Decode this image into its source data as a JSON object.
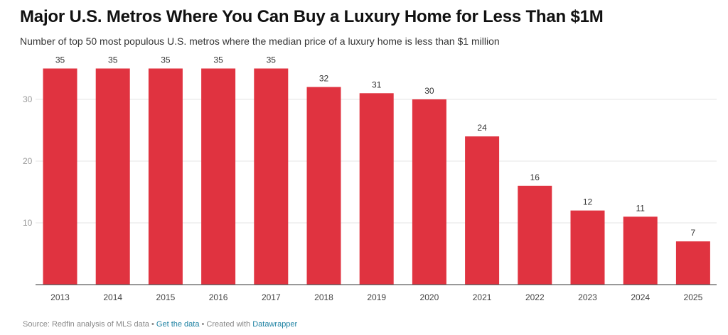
{
  "header": {
    "title": "Major U.S. Metros Where You Can Buy a Luxury Home for Less Than $1M",
    "subtitle": "Number of top 50 most populous U.S. metros where the median price of a luxury home is less than $1 million"
  },
  "footer": {
    "source": "Source: Redfin analysis of MLS data",
    "sep1": " • ",
    "get_data": "Get the data",
    "sep2": " • Created with ",
    "tool": "Datawrapper"
  },
  "colors": {
    "bar": "#e03340",
    "grid": "#e6e6e6",
    "axis": "#333333",
    "link": "#1d81a2"
  },
  "chart_data": {
    "type": "bar",
    "categories": [
      "2013",
      "2014",
      "2015",
      "2016",
      "2017",
      "2018",
      "2019",
      "2020",
      "2021",
      "2022",
      "2023",
      "2024",
      "2025"
    ],
    "values": [
      35,
      35,
      35,
      35,
      35,
      32,
      31,
      30,
      24,
      16,
      12,
      11,
      7
    ],
    "title": "Major U.S. Metros Where You Can Buy a Luxury Home for Less Than $1M",
    "xlabel": "",
    "ylabel": "",
    "ylim": [
      0,
      35
    ],
    "yticks": [
      10,
      20,
      30
    ],
    "grid": true,
    "data_labels": true
  }
}
